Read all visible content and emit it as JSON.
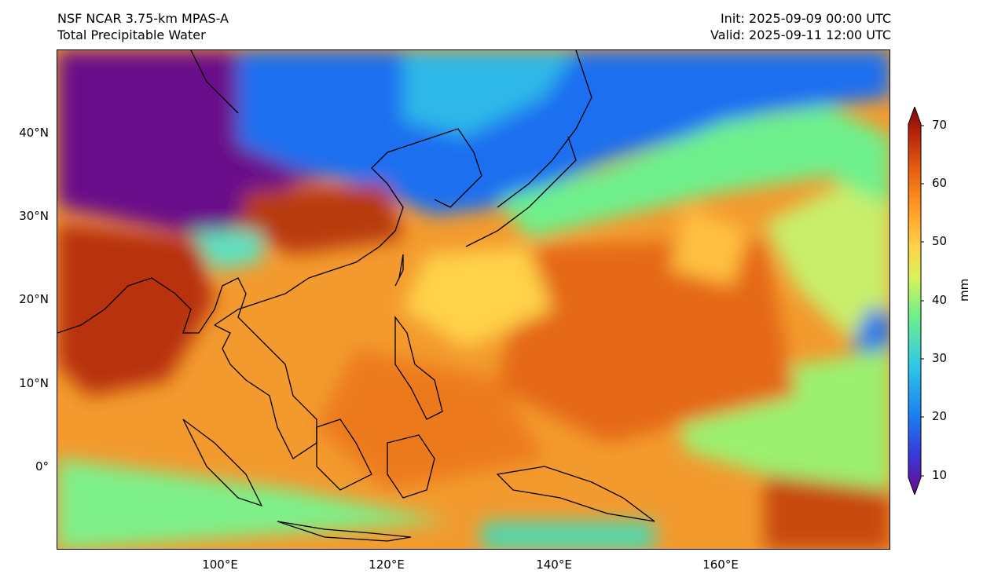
{
  "header": {
    "model": "NSF NCAR 3.75-km MPAS-A",
    "field": "Total Precipitable Water",
    "init": "Init: 2025-09-09 00:00 UTC",
    "valid": "Valid: 2025-09-11 12:00 UTC"
  },
  "axes": {
    "lat_labels": [
      "40°N",
      "30°N",
      "20°N",
      "10°N",
      "0°"
    ],
    "lon_labels": [
      "100°E",
      "120°E",
      "140°E",
      "160°E"
    ]
  },
  "colorbar": {
    "unit": "mm",
    "ticks": [
      "10",
      "20",
      "30",
      "40",
      "50",
      "60",
      "70"
    ],
    "colors": [
      "#6a0a8a",
      "#3b36d8",
      "#1c7cf0",
      "#2fc6e8",
      "#6ef08c",
      "#d8f25a",
      "#ffd24a",
      "#ff9a22",
      "#e85c10",
      "#b8240a",
      "#7a0a04"
    ]
  },
  "map": {
    "extent_lon": [
      80,
      180
    ],
    "extent_lat": [
      -10,
      50
    ]
  }
}
